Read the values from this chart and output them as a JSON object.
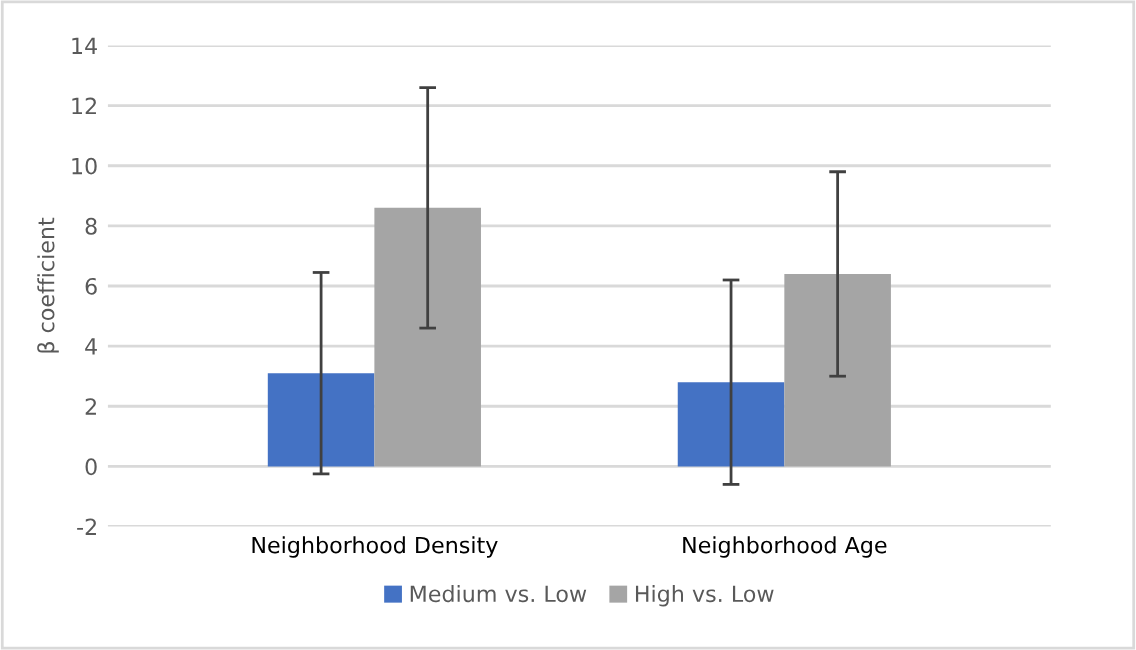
{
  "chart_data": {
    "type": "bar",
    "ylabel": "β coefficient",
    "categories": [
      "Neighborhood Density",
      "Neighborhood Age"
    ],
    "series": [
      {
        "name": "Medium vs. Low",
        "color": "#4472c4",
        "values": [
          3.1,
          2.8
        ],
        "errors": [
          3.35,
          3.4
        ]
      },
      {
        "name": "High vs. Low",
        "color": "#a5a5a5",
        "values": [
          8.6,
          6.4
        ],
        "errors": [
          4.0,
          3.4
        ]
      }
    ],
    "ylim": [
      -2,
      14
    ],
    "yticks": [
      -2,
      0,
      2,
      4,
      6,
      8,
      10,
      12,
      14
    ],
    "grid": "y",
    "legend": "bottom"
  }
}
